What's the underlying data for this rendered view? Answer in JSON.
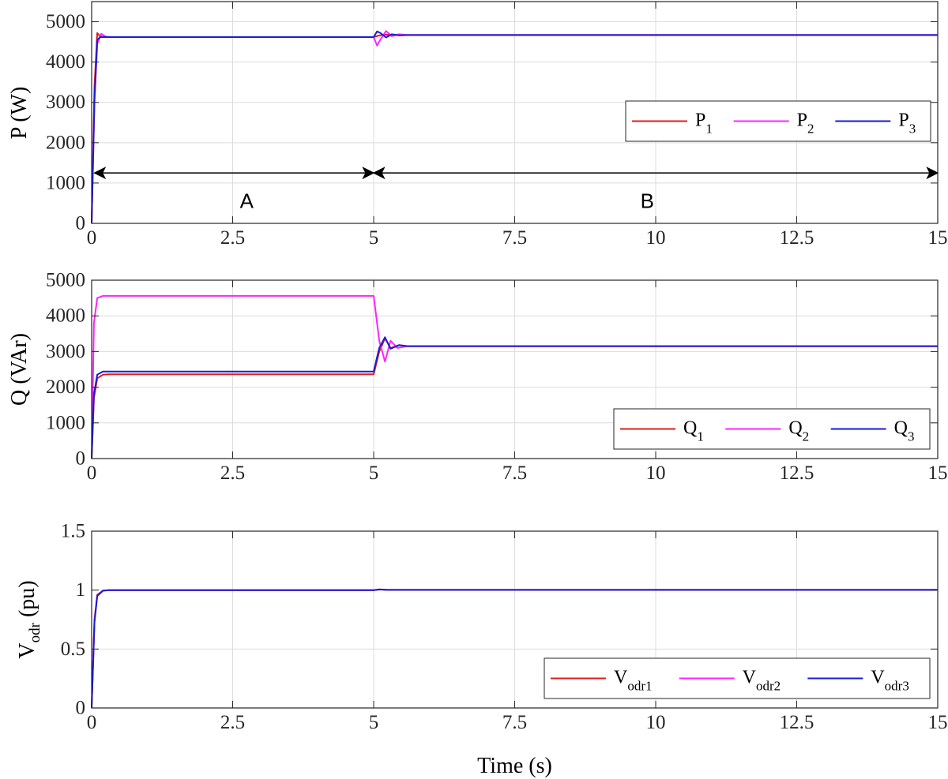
{
  "colors": {
    "s1": "#e01b1b",
    "s2": "#ff22ff",
    "s3": "#1a1ad6"
  },
  "chart_data": [
    {
      "type": "line",
      "ylabel": "P (W)",
      "xlim": [
        0,
        15
      ],
      "ylim": [
        0,
        5500
      ],
      "xticks": [
        0,
        2.5,
        5,
        7.5,
        10,
        12.5,
        15
      ],
      "xtick_labels": [
        "0",
        "2.5",
        "5",
        "7.5",
        "10",
        "12.5",
        "15"
      ],
      "yticks": [
        0,
        1000,
        2000,
        3000,
        4000,
        5000
      ],
      "ytick_labels": [
        "0",
        "1000",
        "2000",
        "3000",
        "4000",
        "5000"
      ],
      "grid": true,
      "legend_position": "right",
      "series": [
        {
          "name": "P",
          "sub": "1",
          "x": [
            0,
            0.05,
            0.1,
            0.15,
            0.22,
            0.35,
            5.0,
            5.1,
            5.2,
            5.35,
            5.6,
            15
          ],
          "y": [
            0,
            3400,
            4720,
            4640,
            4620,
            4620,
            4620,
            4660,
            4680,
            4670,
            4670,
            4670
          ]
        },
        {
          "name": "P",
          "sub": "2",
          "x": [
            0,
            0.05,
            0.1,
            0.17,
            0.25,
            0.35,
            5.0,
            5.06,
            5.12,
            5.22,
            5.32,
            5.45,
            5.6,
            15
          ],
          "y": [
            0,
            3000,
            4450,
            4700,
            4630,
            4620,
            4620,
            4410,
            4560,
            4770,
            4640,
            4690,
            4670,
            4670
          ]
        },
        {
          "name": "P",
          "sub": "3",
          "x": [
            0,
            0.05,
            0.1,
            0.15,
            0.22,
            0.35,
            5.0,
            5.06,
            5.12,
            5.22,
            5.32,
            5.45,
            5.6,
            15
          ],
          "y": [
            0,
            3100,
            4550,
            4620,
            4620,
            4620,
            4620,
            4760,
            4720,
            4610,
            4690,
            4660,
            4670,
            4670
          ]
        }
      ],
      "annotations": [
        {
          "text": "A",
          "x": 2.75,
          "y": 520
        },
        {
          "text": "B",
          "x": 9.85,
          "y": 520
        }
      ],
      "arrows": [
        {
          "x_from": 0.05,
          "x_to": 5.0,
          "y": 1250
        },
        {
          "x_from": 5.0,
          "x_to": 15.0,
          "y": 1250
        }
      ]
    },
    {
      "type": "line",
      "ylabel": "Q (VAr)",
      "xlim": [
        0,
        15
      ],
      "ylim": [
        0,
        5000
      ],
      "xticks": [
        0,
        2.5,
        5,
        7.5,
        10,
        12.5,
        15
      ],
      "xtick_labels": [
        "0",
        "2.5",
        "5",
        "7.5",
        "10",
        "12.5",
        "15"
      ],
      "yticks": [
        0,
        1000,
        2000,
        3000,
        4000,
        5000
      ],
      "ytick_labels": [
        "0",
        "1000",
        "2000",
        "3000",
        "4000",
        "5000"
      ],
      "grid": true,
      "legend_position": "bottom-right",
      "series": [
        {
          "name": "Q",
          "sub": "1",
          "x": [
            0,
            0.04,
            0.1,
            0.2,
            0.3,
            5.0,
            5.1,
            5.2,
            5.3,
            5.45,
            5.6,
            15
          ],
          "y": [
            0,
            1700,
            2250,
            2350,
            2360,
            2360,
            3000,
            3370,
            3100,
            3180,
            3150,
            3150
          ]
        },
        {
          "name": "Q",
          "sub": "2",
          "x": [
            0,
            0.04,
            0.1,
            0.2,
            0.3,
            5.0,
            5.1,
            5.2,
            5.3,
            5.42,
            5.6,
            15
          ],
          "y": [
            0,
            3800,
            4500,
            4560,
            4560,
            4560,
            3300,
            2720,
            3300,
            3100,
            3150,
            3150
          ]
        },
        {
          "name": "Q",
          "sub": "3",
          "x": [
            0,
            0.04,
            0.1,
            0.2,
            0.3,
            5.0,
            5.1,
            5.2,
            5.3,
            5.45,
            5.6,
            15
          ],
          "y": [
            0,
            1800,
            2350,
            2440,
            2440,
            2440,
            3100,
            3400,
            3080,
            3180,
            3150,
            3150
          ]
        }
      ]
    },
    {
      "type": "line",
      "ylabel": "V",
      "ylabel_sub": "odr",
      "ylabel_unit": " (pu)",
      "xlabel": "Time (s)",
      "xlim": [
        0,
        15
      ],
      "ylim": [
        0,
        1.5
      ],
      "xticks": [
        0,
        2.5,
        5,
        7.5,
        10,
        12.5,
        15
      ],
      "xtick_labels": [
        "0",
        "2.5",
        "5",
        "7.5",
        "10",
        "12.5",
        "15"
      ],
      "yticks": [
        0,
        0.5,
        1,
        1.5
      ],
      "ytick_labels": [
        "0",
        "0.5",
        "1",
        "1.5"
      ],
      "grid": true,
      "legend_position": "bottom-right",
      "series": [
        {
          "name": "V",
          "sub": "odr1",
          "x": [
            0,
            0.05,
            0.1,
            0.2,
            0.3,
            5.0,
            5.1,
            5.25,
            15
          ],
          "y": [
            0,
            0.75,
            0.96,
            0.995,
            1.0,
            1.0,
            1.005,
            1.002,
            1.002
          ]
        },
        {
          "name": "V",
          "sub": "odr2",
          "x": [
            0,
            0.05,
            0.1,
            0.2,
            0.3,
            5.0,
            5.1,
            5.25,
            15
          ],
          "y": [
            0,
            0.74,
            0.95,
            0.995,
            1.0,
            1.0,
            1.006,
            1.002,
            1.002
          ]
        },
        {
          "name": "V",
          "sub": "odr3",
          "x": [
            0,
            0.05,
            0.1,
            0.2,
            0.3,
            5.0,
            5.1,
            5.25,
            15
          ],
          "y": [
            0,
            0.73,
            0.95,
            0.995,
            1.0,
            1.0,
            1.005,
            1.002,
            1.002
          ]
        }
      ]
    }
  ]
}
